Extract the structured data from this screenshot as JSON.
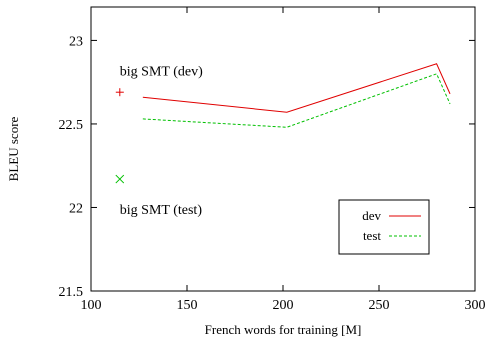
{
  "chart_data": {
    "type": "line",
    "xlabel": "French words for training [M]",
    "ylabel": "BLEU score",
    "xlim": [
      100,
      300
    ],
    "ylim": [
      21.5,
      23.2
    ],
    "xticks": [
      100,
      150,
      200,
      250,
      300
    ],
    "xtick_labels": [
      "100",
      "150",
      "200",
      "250",
      "300"
    ],
    "yticks": [
      21.5,
      22,
      22.5,
      23
    ],
    "ytick_labels": [
      "21.5",
      "22",
      "22.5",
      "23"
    ],
    "grid": false,
    "legend_position": "bottom-right",
    "series": [
      {
        "name": "dev",
        "color": "#e00000",
        "dash": "solid",
        "points": [
          [
            127,
            22.66
          ],
          [
            202,
            22.57
          ],
          [
            280,
            22.86
          ],
          [
            287,
            22.68
          ]
        ]
      },
      {
        "name": "test",
        "color": "#00c000",
        "dash": "dashed",
        "points": [
          [
            127,
            22.53
          ],
          [
            202,
            22.48
          ],
          [
            280,
            22.8
          ],
          [
            287,
            22.62
          ]
        ]
      }
    ],
    "markers": [
      {
        "symbol": "+",
        "color": "#e00000",
        "x": 115,
        "y": 22.69
      },
      {
        "symbol": "x",
        "color": "#00c000",
        "x": 115,
        "y": 22.17
      }
    ],
    "annotations": [
      {
        "text": "big SMT (dev)",
        "x": 115,
        "y": 22.82
      },
      {
        "text": "big SMT (test)",
        "x": 115,
        "y": 21.99
      }
    ]
  }
}
